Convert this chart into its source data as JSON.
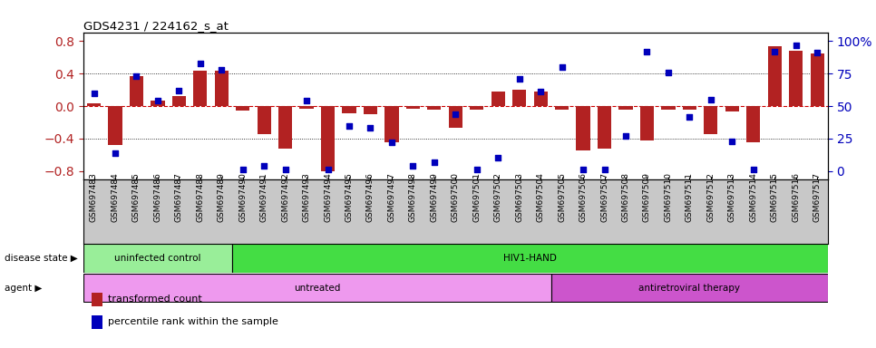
{
  "title": "GDS4231 / 224162_s_at",
  "samples": [
    "GSM697483",
    "GSM697484",
    "GSM697485",
    "GSM697486",
    "GSM697487",
    "GSM697488",
    "GSM697489",
    "GSM697490",
    "GSM697491",
    "GSM697492",
    "GSM697493",
    "GSM697494",
    "GSM697495",
    "GSM697496",
    "GSM697497",
    "GSM697498",
    "GSM697499",
    "GSM697500",
    "GSM697501",
    "GSM697502",
    "GSM697503",
    "GSM697504",
    "GSM697505",
    "GSM697506",
    "GSM697507",
    "GSM697508",
    "GSM697509",
    "GSM697510",
    "GSM697511",
    "GSM697512",
    "GSM697513",
    "GSM697514",
    "GSM697515",
    "GSM697516",
    "GSM697517"
  ],
  "bar_values": [
    0.03,
    -0.48,
    0.37,
    0.07,
    0.12,
    0.44,
    0.44,
    -0.06,
    -0.35,
    -0.52,
    -0.03,
    -0.8,
    -0.09,
    -0.1,
    -0.45,
    -0.03,
    -0.04,
    -0.27,
    -0.04,
    0.18,
    0.2,
    0.18,
    -0.04,
    -0.55,
    -0.52,
    -0.04,
    -0.42,
    -0.04,
    -0.04,
    -0.35,
    -0.07,
    -0.45,
    0.74,
    0.68,
    0.65
  ],
  "dot_percentiles": [
    60,
    14,
    73,
    54,
    62,
    83,
    78,
    1,
    4,
    1,
    54,
    1,
    35,
    33,
    22,
    4,
    7,
    44,
    1,
    10,
    71,
    61,
    80,
    1,
    1,
    27,
    92,
    76,
    42,
    55,
    23,
    1,
    92,
    97,
    91
  ],
  "ylim": [
    -0.9,
    0.9
  ],
  "yticks_left": [
    -0.8,
    -0.4,
    0.0,
    0.4,
    0.8
  ],
  "yticks_right_vals": [
    0,
    25,
    50,
    75,
    100
  ],
  "bar_color": "#b22222",
  "dot_color": "#0000bb",
  "zero_line_color": "#cc0000",
  "grid_line_color": "#000000",
  "disease_state_groups": [
    {
      "label": "uninfected control",
      "start": 0,
      "end": 7,
      "color": "#99ee99"
    },
    {
      "label": "HIV1-HAND",
      "start": 7,
      "end": 35,
      "color": "#44dd44"
    }
  ],
  "agent_groups": [
    {
      "label": "untreated",
      "start": 0,
      "end": 22,
      "color": "#ee99ee"
    },
    {
      "label": "antiretroviral therapy",
      "start": 22,
      "end": 35,
      "color": "#cc55cc"
    }
  ],
  "legend_items": [
    {
      "label": "transformed count",
      "color": "#b22222"
    },
    {
      "label": "percentile rank within the sample",
      "color": "#0000bb"
    }
  ],
  "left_label": "disease state",
  "agent_label": "agent",
  "xtick_bg_color": "#c8c8c8",
  "plot_bg_color": "#ffffff",
  "border_color": "#000000"
}
